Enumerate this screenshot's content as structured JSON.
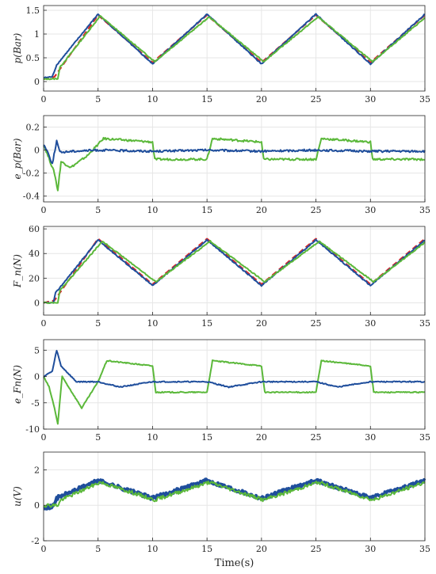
{
  "colors": {
    "reference": "#d62728",
    "controller_a": "#1f4e9c",
    "controller_b": "#5bb83a",
    "grid": "#e6e6e6",
    "axis": "#262626"
  },
  "chart_data": [
    {
      "type": "line",
      "ylabel": "p(Bar)",
      "xlabel": "",
      "xlim": [
        0,
        35
      ],
      "ylim": [
        -0.2,
        1.6
      ],
      "xticks": [
        0,
        5,
        10,
        15,
        20,
        25,
        30,
        35
      ],
      "yticks": [
        0,
        0.5,
        1,
        1.5
      ],
      "ytick_labels": [
        "0",
        "0.5",
        "1",
        "1.5"
      ],
      "grid": true,
      "series": [
        {
          "color": "#d62728",
          "dashed": true,
          "x": [
            0,
            1,
            5,
            10,
            15,
            20,
            25,
            30,
            35
          ],
          "y": [
            0.05,
            0.1,
            1.4,
            0.4,
            1.4,
            0.4,
            1.4,
            0.4,
            1.4
          ]
        },
        {
          "color": "#1f4e9c",
          "x": [
            0,
            0.8,
            1.2,
            5,
            10,
            15,
            20,
            25,
            30,
            35
          ],
          "y": [
            0.08,
            0.1,
            0.35,
            1.42,
            0.37,
            1.42,
            0.37,
            1.42,
            0.37,
            1.42
          ]
        },
        {
          "color": "#5bb83a",
          "x": [
            0,
            1.3,
            1.5,
            5.2,
            10.2,
            15.2,
            20.2,
            25.2,
            30.2,
            35
          ],
          "y": [
            0.05,
            0.06,
            0.3,
            1.38,
            0.42,
            1.36,
            0.42,
            1.36,
            0.42,
            1.34
          ]
        }
      ]
    },
    {
      "type": "line",
      "ylabel": "e_p(Bar)",
      "xlabel": "",
      "xlim": [
        0,
        35
      ],
      "ylim": [
        -0.45,
        0.3
      ],
      "xticks": [
        0,
        5,
        10,
        15,
        20,
        25,
        30,
        35
      ],
      "yticks": [
        -0.4,
        -0.2,
        0,
        0.2
      ],
      "ytick_labels": [
        "-0.4",
        "-0.2",
        "0",
        "0.2"
      ],
      "grid": true,
      "series": [
        {
          "color": "#5bb83a",
          "x": [
            0,
            0.4,
            1,
            1.3,
            1.6,
            2.5,
            4,
            5.5,
            10,
            10.2,
            15,
            15.5,
            20,
            20.2,
            25,
            25.5,
            30,
            30.2,
            35
          ],
          "y": [
            0.05,
            -0.05,
            -0.2,
            -0.35,
            -0.1,
            -0.15,
            -0.05,
            0.1,
            0.07,
            -0.08,
            -0.08,
            0.1,
            0.07,
            -0.08,
            -0.08,
            0.1,
            0.07,
            -0.08,
            -0.08
          ]
        },
        {
          "color": "#1f4e9c",
          "x": [
            0,
            0.3,
            0.8,
            1.2,
            1.5,
            2.5,
            5,
            10,
            15,
            20,
            25,
            30,
            35
          ],
          "y": [
            0.05,
            0.0,
            -0.12,
            0.08,
            -0.02,
            -0.01,
            0.0,
            -0.01,
            0.0,
            -0.01,
            0.0,
            -0.01,
            -0.01
          ]
        }
      ]
    },
    {
      "type": "line",
      "ylabel": "F_n(N)",
      "xlabel": "",
      "xlim": [
        0,
        35
      ],
      "ylim": [
        -10,
        62
      ],
      "xticks": [
        0,
        5,
        10,
        15,
        20,
        25,
        30,
        35
      ],
      "yticks": [
        0,
        20,
        40,
        60
      ],
      "ytick_labels": [
        "0",
        "20",
        "40",
        "60"
      ],
      "grid": true,
      "series": [
        {
          "color": "#d62728",
          "dashed": true,
          "x": [
            0,
            1,
            5,
            10,
            15,
            20,
            25,
            30,
            35
          ],
          "y": [
            0,
            2,
            52,
            15,
            52,
            15,
            52,
            15,
            52
          ]
        },
        {
          "color": "#1f4e9c",
          "x": [
            0,
            0.9,
            1.1,
            5,
            10,
            15,
            20,
            25,
            30,
            35
          ],
          "y": [
            0,
            0,
            8,
            51,
            14,
            51,
            14,
            51,
            14,
            51
          ]
        },
        {
          "color": "#5bb83a",
          "x": [
            0,
            1.3,
            1.5,
            5.4,
            10.3,
            15.3,
            20.3,
            25.3,
            30.3,
            35
          ],
          "y": [
            0,
            0,
            10,
            50,
            17,
            50,
            17,
            50,
            17,
            49
          ]
        }
      ]
    },
    {
      "type": "line",
      "ylabel": "e_Fn(N)",
      "xlabel": "",
      "xlim": [
        0,
        35
      ],
      "ylim": [
        -10,
        7
      ],
      "xticks": [
        0,
        5,
        10,
        15,
        20,
        25,
        30,
        35
      ],
      "yticks": [
        -10,
        -5,
        0,
        5
      ],
      "ytick_labels": [
        "-10",
        "-5",
        "0",
        "5"
      ],
      "grid": true,
      "series": [
        {
          "color": "#5bb83a",
          "x": [
            0,
            0.5,
            1,
            1.3,
            1.7,
            3.5,
            5,
            5.8,
            10,
            10.3,
            15,
            15.5,
            20,
            20.3,
            25,
            25.5,
            30,
            30.3,
            35
          ],
          "y": [
            0,
            -2,
            -6,
            -9,
            0,
            -6,
            -1,
            3,
            2,
            -3,
            -3,
            3,
            2,
            -3,
            -3,
            3,
            2,
            -3,
            -3
          ]
        },
        {
          "color": "#1f4e9c",
          "x": [
            0,
            0.8,
            1.2,
            1.6,
            3,
            5,
            7,
            10,
            11,
            15,
            17,
            20,
            21,
            25,
            27,
            30,
            31,
            35
          ],
          "y": [
            0,
            1,
            5,
            2,
            -1,
            -1,
            -2,
            -1,
            -1,
            -1,
            -2,
            -1,
            -1,
            -1,
            -2,
            -1,
            -1,
            -1
          ]
        }
      ]
    },
    {
      "type": "line",
      "ylabel": "u(V)",
      "xlabel": "Time(s)",
      "xlim": [
        0,
        35
      ],
      "ylim": [
        -2,
        3
      ],
      "xticks": [
        0,
        5,
        10,
        15,
        20,
        25,
        30,
        35
      ],
      "yticks": [
        -2,
        0,
        2
      ],
      "ytick_labels": [
        "-2",
        "0",
        "2"
      ],
      "grid": true,
      "series": [
        {
          "color": "#1f4e9c",
          "thick": true,
          "x": [
            0,
            0.8,
            1.2,
            5,
            10,
            15,
            20,
            25,
            30,
            35
          ],
          "y": [
            -0.1,
            -0.1,
            0.4,
            1.4,
            0.4,
            1.4,
            0.4,
            1.4,
            0.4,
            1.4
          ]
        },
        {
          "color": "#5bb83a",
          "x": [
            0,
            1.3,
            1.6,
            5.2,
            10.2,
            15.2,
            20.2,
            25.2,
            30.2,
            35
          ],
          "y": [
            0,
            0,
            0.3,
            1.3,
            0.3,
            1.3,
            0.3,
            1.3,
            0.3,
            1.3
          ]
        }
      ]
    }
  ]
}
